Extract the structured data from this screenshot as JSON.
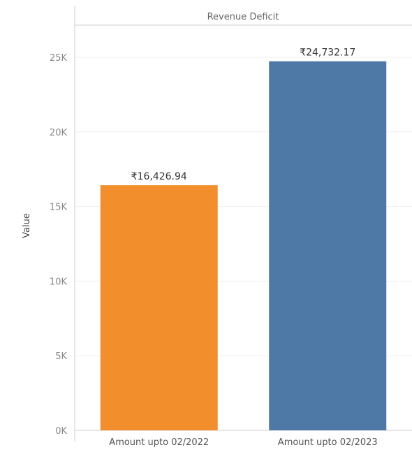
{
  "chart_data": {
    "type": "bar",
    "header": "Revenue Deficit",
    "categories": [
      "Amount upto 02/2022",
      "Amount upto 02/2023"
    ],
    "values": [
      16426.94,
      24732.17
    ],
    "data_labels": [
      "₹16,426.94",
      "₹24,732.17"
    ],
    "colors": [
      "#F28E2B",
      "#4E79A7"
    ],
    "ylabel": "Value",
    "xlabel": "",
    "ylim": [
      0,
      25000
    ],
    "yticks": [
      0,
      5000,
      10000,
      15000,
      20000,
      25000
    ],
    "ytick_labels": [
      "0K",
      "5K",
      "10K",
      "15K",
      "20K",
      "25K"
    ],
    "grid": true
  }
}
